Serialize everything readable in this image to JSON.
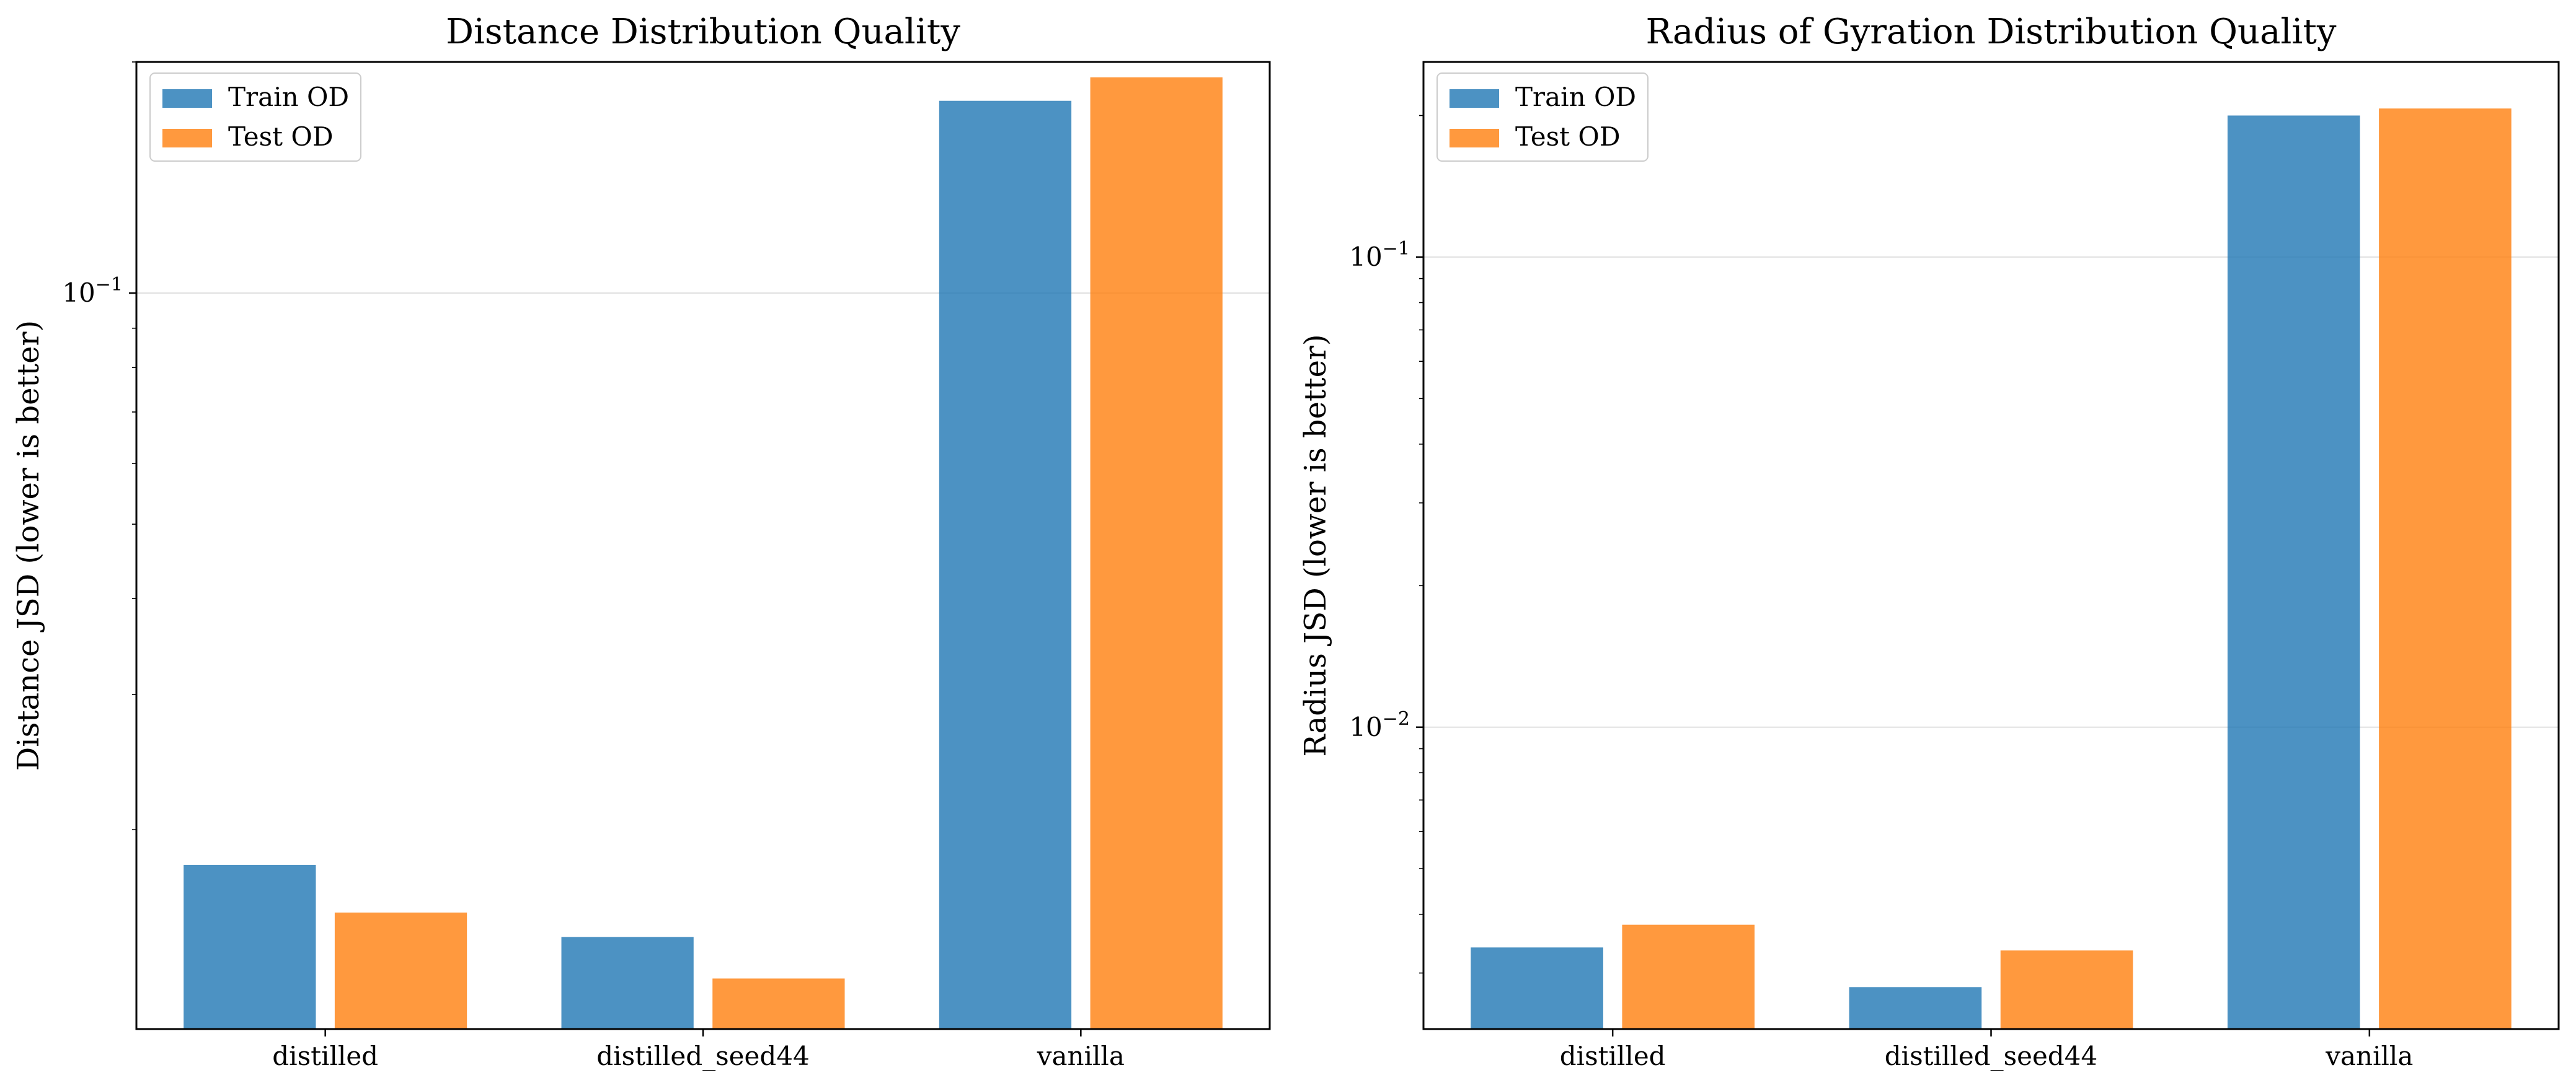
{
  "chart_data": [
    {
      "type": "bar",
      "title": "Distance Distribution Quality",
      "xlabel": "",
      "ylabel": "Distance JSD (lower is better)",
      "yscale": "log",
      "ylim": [
        0.011,
        0.2
      ],
      "yticks": [
        {
          "value": 0.1,
          "base": "10",
          "exp": "−1"
        }
      ],
      "grid": "horizontal",
      "legend_position": "top-left",
      "categories": [
        "distilled",
        "distilled_seed44",
        "vanilla"
      ],
      "series": [
        {
          "name": "Train OD",
          "color": "#1f77b4",
          "values": [
            0.018,
            0.0145,
            0.178
          ]
        },
        {
          "name": "Test OD",
          "color": "#ff7f0e",
          "values": [
            0.0156,
            0.0128,
            0.191
          ]
        }
      ]
    },
    {
      "type": "bar",
      "title": "Radius of Gyration Distribution Quality",
      "xlabel": "",
      "ylabel": "Radius JSD (lower is better)",
      "yscale": "log",
      "ylim": [
        0.00228,
        0.26
      ],
      "yticks": [
        {
          "value": 0.1,
          "base": "10",
          "exp": "−1"
        },
        {
          "value": 0.01,
          "base": "10",
          "exp": "−2"
        }
      ],
      "grid": "horizontal",
      "legend_position": "top-left",
      "categories": [
        "distilled",
        "distilled_seed44",
        "vanilla"
      ],
      "series": [
        {
          "name": "Train OD",
          "color": "#1f77b4",
          "values": [
            0.0034,
            0.0028,
            0.2
          ]
        },
        {
          "name": "Test OD",
          "color": "#ff7f0e",
          "values": [
            0.0038,
            0.00335,
            0.207
          ]
        }
      ]
    }
  ]
}
